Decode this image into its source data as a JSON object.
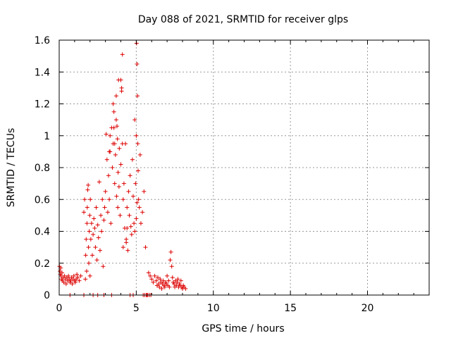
{
  "chart_data": {
    "type": "scatter",
    "title": "Day 088 of 2021, SRMTID for receiver glps",
    "xlabel": "GPS time / hours",
    "ylabel": "SRMTID / TECUs",
    "xlim": [
      0,
      24
    ],
    "ylim": [
      0,
      1.6
    ],
    "xticks": [
      0,
      5,
      10,
      15,
      20
    ],
    "xtick_labels": [
      "0",
      "5",
      "10",
      "15",
      "20"
    ],
    "yticks": [
      0,
      0.2,
      0.4,
      0.6,
      0.8,
      1,
      1.2,
      1.4,
      1.6
    ],
    "ytick_labels": [
      "0",
      "0.2",
      "0.4",
      "0.6",
      "0.8",
      "1",
      "1.2",
      "1.4",
      "1.6"
    ],
    "grid": true,
    "marker": "+",
    "series": [
      {
        "name": "SRMTID",
        "color": "#dd0000",
        "x": [
          0.02,
          0.05,
          0.08,
          0.1,
          0.12,
          0.15,
          0.18,
          0.2,
          0.25,
          0.3,
          0.35,
          0.4,
          0.45,
          0.5,
          0.55,
          0.6,
          0.65,
          0.7,
          0.75,
          0.8,
          0.85,
          0.9,
          0.95,
          1.0,
          1.05,
          1.1,
          1.15,
          1.2,
          1.3,
          1.4,
          1.6,
          1.65,
          1.7,
          1.72,
          1.75,
          1.78,
          1.8,
          1.82,
          1.85,
          1.88,
          1.9,
          1.92,
          1.95,
          1.98,
          2.0,
          2.02,
          2.05,
          2.1,
          2.15,
          2.2,
          2.25,
          2.3,
          2.35,
          2.4,
          2.45,
          2.5,
          2.55,
          2.6,
          2.65,
          2.7,
          2.75,
          2.8,
          2.85,
          2.9,
          2.95,
          3.0,
          3.05,
          3.1,
          3.15,
          3.2,
          3.25,
          3.3,
          3.35,
          3.4,
          3.45,
          3.5,
          3.55,
          3.6,
          3.65,
          3.7,
          3.72,
          3.75,
          3.78,
          3.8,
          3.82,
          3.85,
          3.88,
          3.9,
          3.95,
          4.0,
          4.05,
          4.1,
          4.15,
          4.2,
          4.25,
          4.3,
          4.35,
          4.4,
          4.45,
          4.5,
          4.55,
          4.6,
          4.65,
          4.7,
          4.75,
          4.8,
          4.85,
          4.9,
          4.95,
          5.0,
          5.02,
          5.05,
          5.08,
          5.1,
          5.12,
          5.15,
          5.2,
          5.25,
          5.3,
          5.4,
          5.5,
          5.6,
          5.8,
          5.9,
          6.0,
          6.1,
          6.2,
          6.3,
          6.35,
          6.4,
          6.45,
          6.5,
          6.55,
          6.6,
          6.65,
          6.7,
          6.75,
          6.8,
          6.85,
          6.9,
          6.95,
          7.0,
          7.05,
          7.1,
          7.15,
          7.2,
          7.25,
          7.3,
          7.35,
          7.4,
          7.45,
          7.5,
          7.55,
          7.6,
          7.65,
          7.7,
          7.75,
          7.8,
          7.85,
          7.9,
          7.95,
          8.0,
          8.05,
          8.1,
          8.2,
          0.7,
          1.6,
          2.2,
          2.5,
          2.9,
          3.4,
          4.6,
          4.8,
          5.45,
          5.55,
          5.65,
          5.7,
          5.75,
          5.85,
          5.95,
          3.25,
          3.3,
          3.5,
          3.55,
          4.0,
          4.05,
          4.35,
          4.4,
          4.15,
          4.9,
          5.0,
          5.05,
          3.6,
          3.7,
          4.1
        ],
        "y": [
          0.18,
          0.15,
          0.13,
          0.17,
          0.12,
          0.1,
          0.14,
          0.09,
          0.11,
          0.08,
          0.12,
          0.1,
          0.07,
          0.11,
          0.09,
          0.12,
          0.1,
          0.08,
          0.09,
          0.11,
          0.07,
          0.1,
          0.12,
          0.09,
          0.08,
          0.1,
          0.13,
          0.11,
          0.09,
          0.12,
          0.52,
          0.6,
          0.1,
          0.25,
          0.35,
          0.15,
          0.45,
          0.55,
          0.66,
          0.69,
          0.3,
          0.2,
          0.4,
          0.5,
          0.12,
          0.6,
          0.35,
          0.45,
          0.25,
          0.38,
          0.48,
          0.42,
          0.3,
          0.55,
          0.22,
          0.44,
          0.36,
          0.71,
          0.28,
          0.5,
          0.4,
          0.6,
          0.18,
          0.47,
          0.55,
          0.65,
          1.01,
          0.85,
          0.52,
          0.75,
          0.6,
          0.9,
          0.45,
          1.05,
          0.8,
          0.95,
          1.15,
          0.7,
          0.88,
          1.25,
          0.62,
          1.06,
          0.98,
          0.55,
          0.77,
          1.35,
          0.68,
          0.92,
          0.5,
          0.82,
          1.28,
          1.51,
          0.6,
          0.7,
          0.42,
          0.95,
          0.33,
          0.55,
          0.28,
          0.65,
          0.5,
          0.75,
          0.43,
          0.38,
          0.85,
          0.62,
          0.45,
          1.1,
          0.7,
          1.0,
          1.58,
          1.45,
          1.25,
          0.95,
          0.78,
          0.6,
          0.55,
          0.88,
          0.45,
          0.52,
          0.65,
          0.3,
          0.14,
          0.12,
          0.1,
          0.08,
          0.12,
          0.09,
          0.06,
          0.11,
          0.07,
          0.05,
          0.1,
          0.08,
          0.04,
          0.07,
          0.09,
          0.06,
          0.05,
          0.08,
          0.07,
          0.12,
          0.06,
          0.09,
          0.05,
          0.22,
          0.27,
          0.18,
          0.11,
          0.08,
          0.07,
          0.05,
          0.09,
          0.06,
          0.08,
          0.1,
          0.05,
          0.07,
          0.06,
          0.09,
          0.05,
          0.04,
          0.06,
          0.05,
          0.04,
          0,
          0,
          0,
          0,
          0,
          0,
          0,
          0,
          0,
          0,
          0,
          0,
          0,
          0,
          0,
          0.9,
          1.0,
          1.2,
          1.05,
          1.35,
          1.3,
          0.35,
          0.42,
          0.3,
          0.4,
          0.48,
          0.58,
          0.95,
          1.1,
          0.95
        ]
      }
    ]
  }
}
